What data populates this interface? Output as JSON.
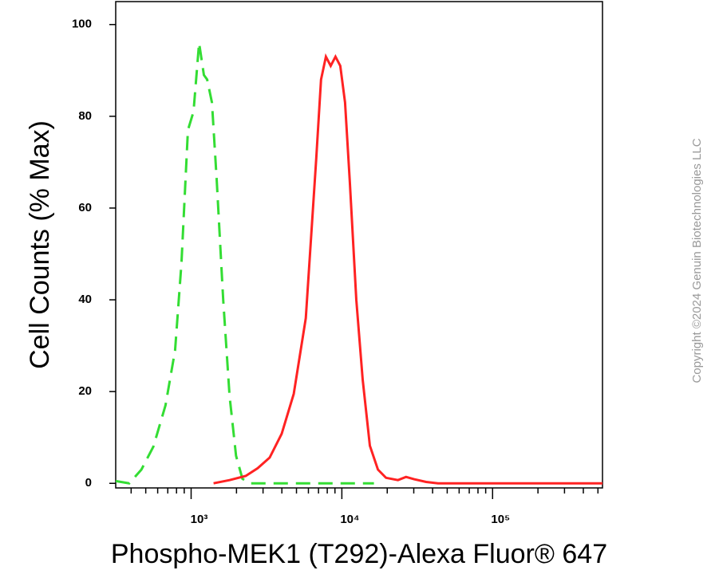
{
  "chart_data": {
    "type": "line",
    "xlabel": "Phospho-MEK1 (T292)-Alexa Fluor® 647",
    "ylabel": "Cell Counts (% Max)",
    "annotation": "Copyright ©2024 Genuin Biotechnologies LLC",
    "xscale": "log",
    "xlim": [
      316,
      536000
    ],
    "ylim": [
      -1,
      105
    ],
    "xticks": [
      {
        "value": 1000,
        "label": "10³"
      },
      {
        "value": 10000,
        "label": "10⁴"
      },
      {
        "value": 100000,
        "label": "10⁵"
      }
    ],
    "xminorticks": [
      400,
      500,
      600,
      700,
      800,
      900,
      2000,
      3000,
      4000,
      5000,
      6000,
      7000,
      8000,
      9000,
      20000,
      30000,
      40000,
      50000,
      60000,
      70000,
      80000,
      90000,
      200000,
      300000,
      400000,
      500000
    ],
    "yticks": [
      0,
      20,
      40,
      60,
      80,
      100
    ],
    "series": [
      {
        "color": "#33dd33",
        "style": "dashed",
        "x": [
          316,
          389,
          468,
          562,
          676,
          783,
          863,
          952,
          1037,
          1130,
          1216,
          1277,
          1375,
          1479,
          1633,
          1799,
          1986,
          2189,
          2444,
          2937,
          16330
        ],
        "values": [
          0.5,
          0,
          3,
          8,
          17,
          29,
          48,
          77,
          81,
          96,
          89,
          88,
          83,
          66,
          40,
          19,
          6,
          1,
          0,
          0,
          0
        ]
      },
      {
        "color": "#ff2222",
        "style": "solid",
        "x": [
          1409,
          1799,
          2301,
          2763,
          3319,
          3988,
          4795,
          5763,
          6761,
          7278,
          7834,
          8433,
          9068,
          9755,
          10500,
          11300,
          12470,
          13750,
          15350,
          17350,
          19620,
          23550,
          26650,
          30130,
          36220,
          43470,
          536000
        ],
        "values": [
          0,
          0.7,
          1.6,
          3.3,
          5.6,
          10.8,
          19.5,
          36,
          70.8,
          88,
          93,
          91,
          93,
          91,
          83,
          65.6,
          40,
          22.6,
          8.2,
          3,
          1.2,
          0.7,
          1.4,
          0.9,
          0.3,
          0,
          0
        ]
      }
    ]
  }
}
